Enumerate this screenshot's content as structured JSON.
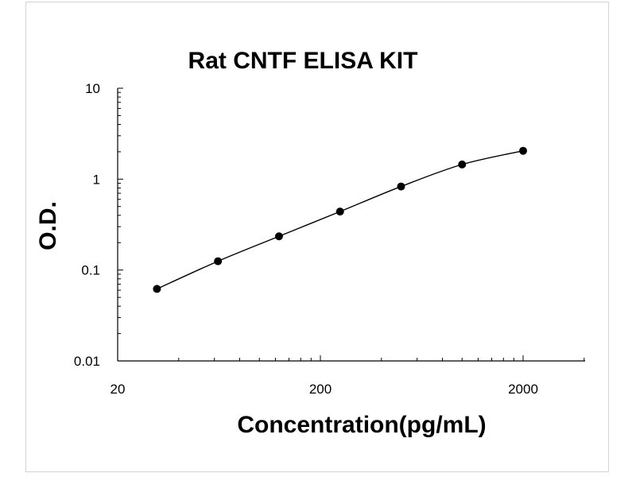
{
  "chart_data": {
    "type": "scatter",
    "title": "Rat CNTF ELISA KIT",
    "xlabel": "Concentration(pg/mL)",
    "ylabel": "O.D.",
    "x_scale": "log",
    "y_scale": "log",
    "xlim": [
      20,
      5000
    ],
    "ylim": [
      0.01,
      10
    ],
    "x_ticks": [
      20,
      200,
      2000
    ],
    "x_tick_labels": [
      "20",
      "200",
      "2000"
    ],
    "y_ticks": [
      0.01,
      0.1,
      1,
      10
    ],
    "y_tick_labels": [
      "0.01",
      "0.1",
      "1",
      "10"
    ],
    "grid": false,
    "legend": "none",
    "series": [
      {
        "x": [
          31.25,
          62.5,
          125,
          250,
          500,
          1000,
          2000
        ],
        "y": [
          0.062,
          0.125,
          0.235,
          0.44,
          0.83,
          1.45,
          2.05
        ],
        "marker": "circle",
        "line": "smooth"
      }
    ],
    "colors": {
      "line": "#000000",
      "marker": "#000000",
      "axis": "#000000"
    }
  }
}
